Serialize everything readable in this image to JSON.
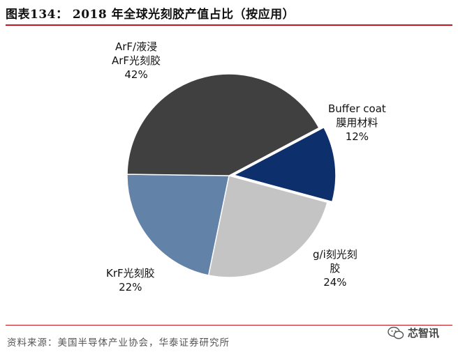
{
  "header": {
    "title": "图表134：  2018 年全球光刻胶产值占比（按应用）"
  },
  "footer": {
    "source": "资料来源：美国半导体产业协会，华泰证券研究所",
    "watermark": "芯智讯"
  },
  "chart_data": {
    "type": "pie",
    "title": "2018 年全球光刻胶产值占比（按应用）",
    "start_angle_deg": 62,
    "direction": "clockwise",
    "slices": [
      {
        "label_lines": [
          "Buffer coat",
          "膜用材料"
        ],
        "value": 12,
        "pct_label": "12%",
        "color": "#0d2f6b"
      },
      {
        "label_lines": [
          "g/i刻光刻",
          "胶"
        ],
        "value": 24,
        "pct_label": "24%",
        "color": "#c4c4c4"
      },
      {
        "label_lines": [
          "KrF光刻胶"
        ],
        "value": 22,
        "pct_label": "22%",
        "color": "#6282a8"
      },
      {
        "label_lines": [
          "ArF/液浸",
          "ArF光刻胶"
        ],
        "value": 42,
        "pct_label": "42%",
        "color": "#404040"
      }
    ],
    "exploded_slice_index": 0
  }
}
